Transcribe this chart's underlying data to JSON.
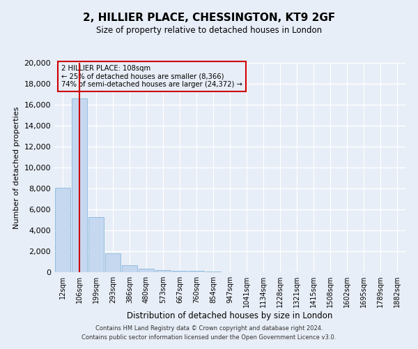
{
  "title_line1": "2, HILLIER PLACE, CHESSINGTON, KT9 2GF",
  "title_line2": "Size of property relative to detached houses in London",
  "xlabel": "Distribution of detached houses by size in London",
  "ylabel": "Number of detached properties",
  "bar_color": "#c5d8f0",
  "bar_edge_color": "#7aafd4",
  "categories": [
    "12sqm",
    "106sqm",
    "199sqm",
    "293sqm",
    "386sqm",
    "480sqm",
    "573sqm",
    "667sqm",
    "760sqm",
    "854sqm",
    "947sqm",
    "1041sqm",
    "1134sqm",
    "1228sqm",
    "1321sqm",
    "1415sqm",
    "1508sqm",
    "1602sqm",
    "1695sqm",
    "1789sqm",
    "1882sqm"
  ],
  "values": [
    8100,
    16600,
    5300,
    1800,
    650,
    320,
    200,
    150,
    120,
    100,
    0,
    0,
    0,
    0,
    0,
    0,
    0,
    0,
    0,
    0,
    0
  ],
  "ylim": [
    0,
    20000
  ],
  "yticks": [
    0,
    2000,
    4000,
    6000,
    8000,
    10000,
    12000,
    14000,
    16000,
    18000,
    20000
  ],
  "property_label": "2 HILLIER PLACE: 108sqm",
  "annotation_line1": "← 25% of detached houses are smaller (8,366)",
  "annotation_line2": "74% of semi-detached houses are larger (24,372) →",
  "vline_x_index": 1.0,
  "footer_line1": "Contains HM Land Registry data © Crown copyright and database right 2024.",
  "footer_line2": "Contains public sector information licensed under the Open Government Licence v3.0.",
  "bg_color": "#e8eef7",
  "grid_color": "#ffffff",
  "vline_color": "#cc0000",
  "box_edge_color": "#cc0000"
}
